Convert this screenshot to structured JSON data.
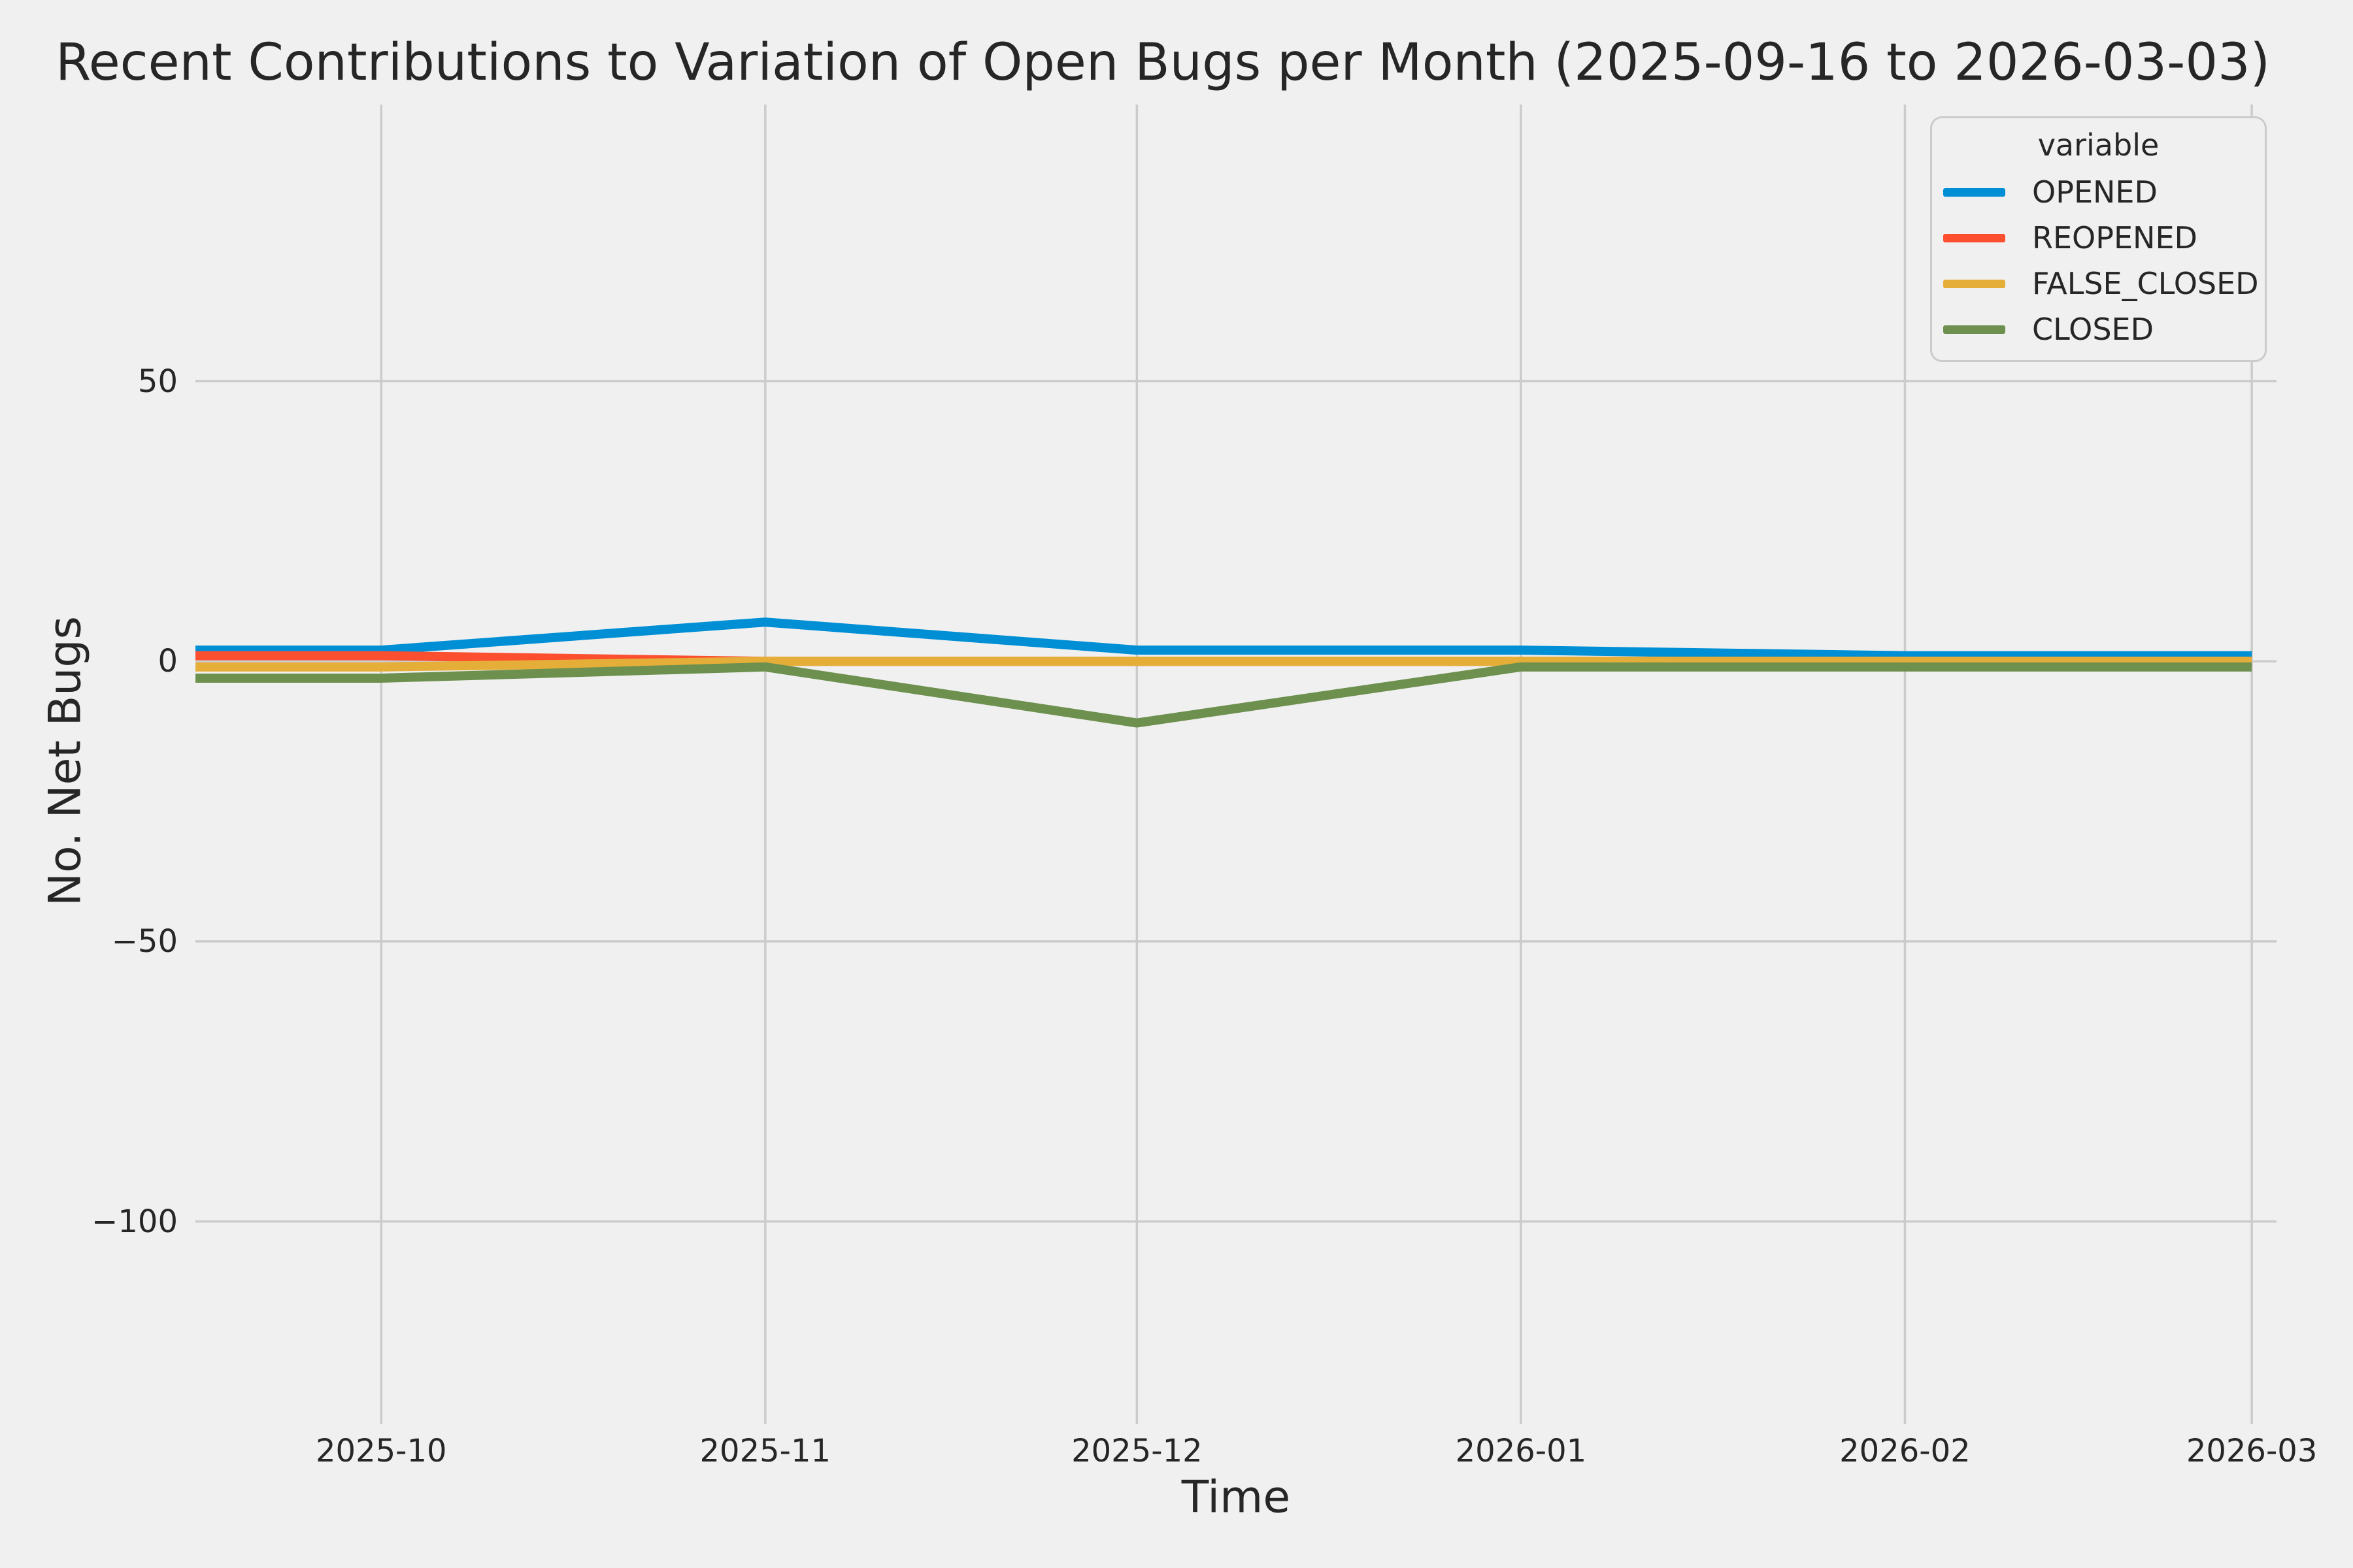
{
  "title": "Recent Contributions to Variation of Open Bugs per Month (2025-09-16 to 2026-03-03)",
  "axes": {
    "x_label": "Time",
    "y_label": "No. Net Bugs"
  },
  "legend": {
    "title": "variable",
    "entries": [
      "OPENED",
      "REOPENED",
      "FALSE_CLOSED",
      "CLOSED"
    ]
  },
  "colors": {
    "background": "#f0f0f0",
    "grid": "#cbcbcb",
    "text": "#262626",
    "opened": "#008fd5",
    "reopened": "#fc4f30",
    "false_closed": "#e5ae38",
    "closed": "#6d904f"
  },
  "chart_data": {
    "type": "line",
    "title": "Recent Contributions to Variation of Open Bugs per Month (2025-09-16 to 2026-03-03)",
    "xlabel": "Time",
    "ylabel": "No. Net Bugs",
    "grid": true,
    "legend_title": "variable",
    "legend_position": "upper right",
    "x": [
      "2025-09-16",
      "2025-10-01",
      "2025-11-01",
      "2025-12-01",
      "2026-01-01",
      "2026-02-01",
      "2026-03-01"
    ],
    "series": [
      {
        "name": "OPENED",
        "color": "#008fd5",
        "values": [
          2,
          2,
          7,
          2,
          2,
          1,
          1
        ]
      },
      {
        "name": "REOPENED",
        "color": "#fc4f30",
        "values": [
          1,
          1,
          0,
          0,
          0,
          0,
          0
        ]
      },
      {
        "name": "FALSE_CLOSED",
        "color": "#e5ae38",
        "values": [
          -1,
          -1,
          0,
          0,
          0,
          0,
          0
        ]
      },
      {
        "name": "CLOSED",
        "color": "#6d904f",
        "values": [
          -3,
          -3,
          -1,
          -11,
          -1,
          -1,
          -1
        ]
      }
    ],
    "xlim": [
      "2025-09-16",
      "2026-03-03"
    ],
    "ylim": [
      -136.2,
      99.4
    ],
    "yticks": [
      {
        "value": 50,
        "label": "50"
      },
      {
        "value": 0,
        "label": "0"
      },
      {
        "value": -50,
        "label": "−50"
      },
      {
        "value": -100,
        "label": "−100"
      }
    ],
    "xticks": [
      {
        "value": "2025-10-01",
        "label": "2025-10"
      },
      {
        "value": "2025-11-01",
        "label": "2025-11"
      },
      {
        "value": "2025-12-01",
        "label": "2025-12"
      },
      {
        "value": "2026-01-01",
        "label": "2026-01"
      },
      {
        "value": "2026-02-01",
        "label": "2026-02"
      },
      {
        "value": "2026-03-01",
        "label": "2026-03"
      }
    ]
  }
}
